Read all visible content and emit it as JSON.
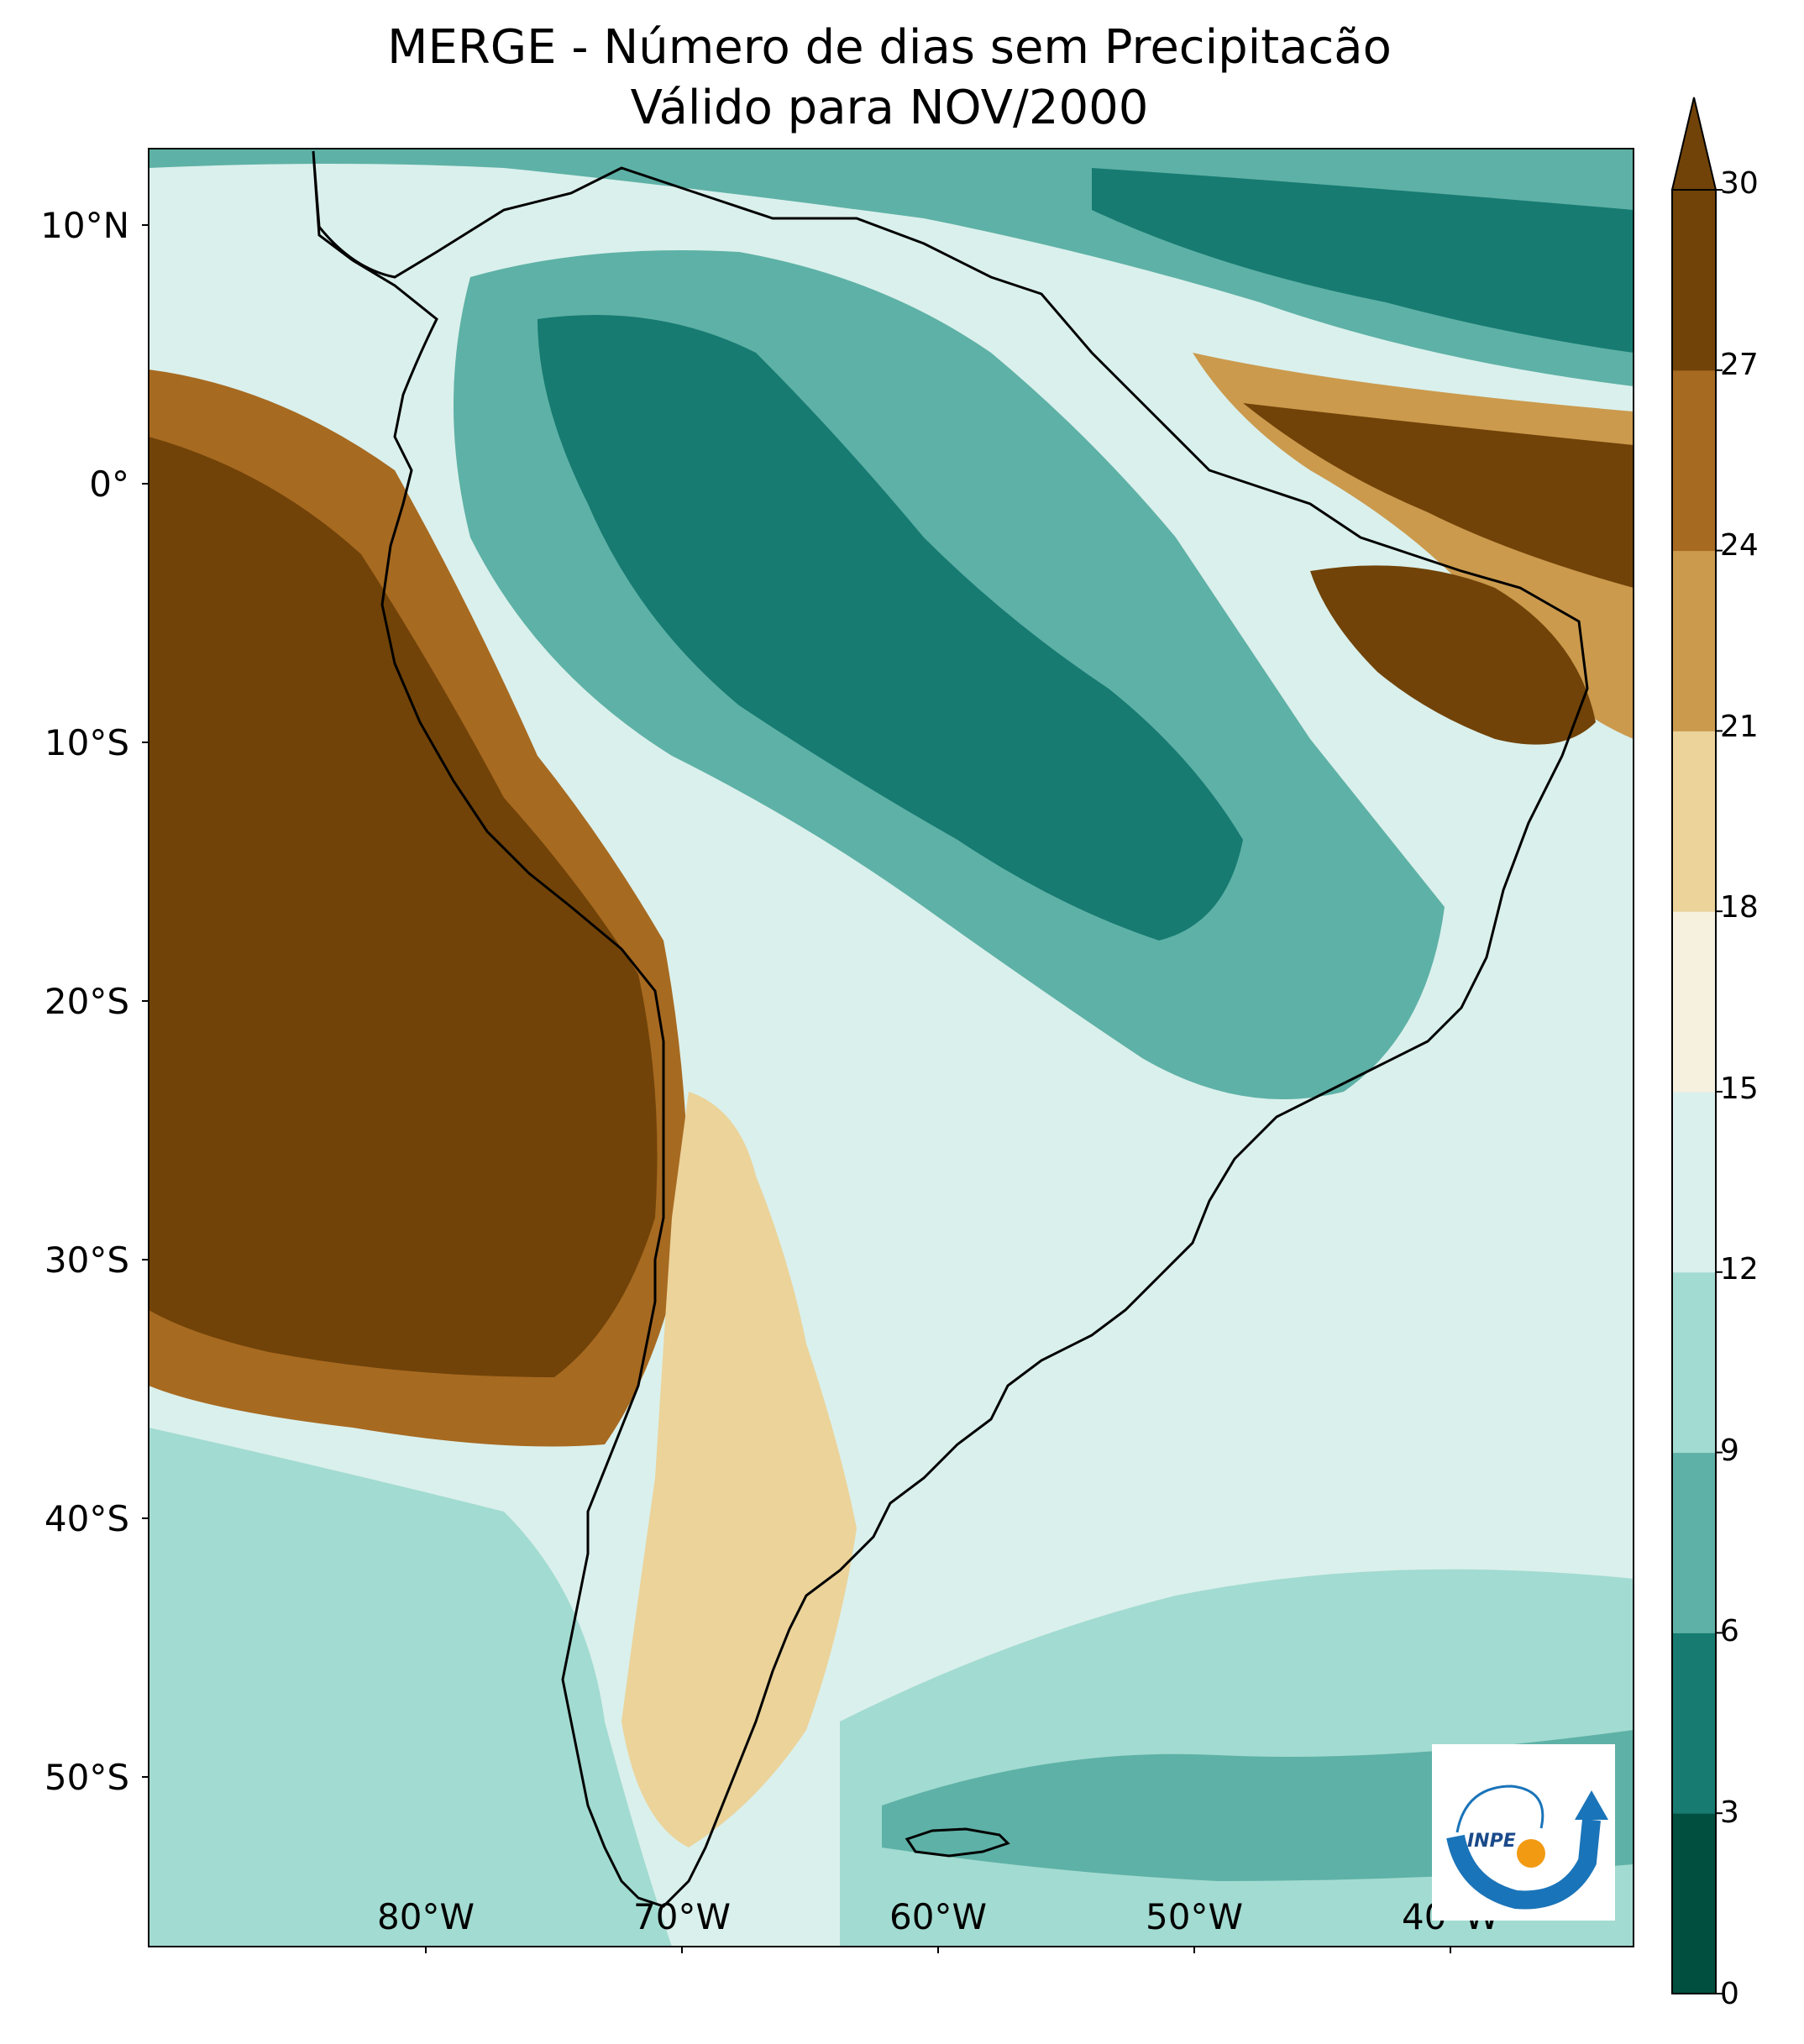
{
  "title": {
    "line1": "MERGE - Número de dias sem Precipitacão",
    "line2": "Válido para NOV/2000"
  },
  "axes": {
    "lat_labels": [
      "10°N",
      "0°",
      "10°S",
      "20°S",
      "30°S",
      "40°S",
      "50°S"
    ],
    "lon_labels": [
      "80°W",
      "70°W",
      "60°W",
      "50°W",
      "40°W"
    ]
  },
  "colorbar": {
    "ticks": [
      "0",
      "3",
      "6",
      "9",
      "12",
      "15",
      "18",
      "21",
      "24",
      "27",
      "30"
    ],
    "colors": [
      "#01503f",
      "#177b72",
      "#5eb1a6",
      "#a2dbd1",
      "#daf0ec",
      "#f6f0df",
      "#ebd39a",
      "#cb9a4d",
      "#a76a21",
      "#714308"
    ],
    "extend": "max"
  },
  "logo": {
    "text": "INPE",
    "blue": "#1a74b9",
    "orange": "#f29a12"
  }
}
